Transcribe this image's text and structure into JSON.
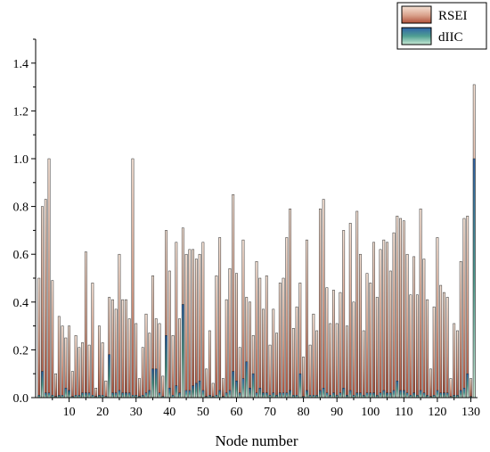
{
  "chart_data": {
    "type": "bar",
    "xlabel": "Node number",
    "ylabel": "",
    "ylim": [
      0,
      1.5
    ],
    "xlim": [
      0,
      132
    ],
    "yticks": [
      "0.0",
      "0.2",
      "0.4",
      "0.6",
      "0.8",
      "1.0",
      "1.2",
      "1.4"
    ],
    "xticks": [
      "10",
      "20",
      "30",
      "40",
      "50",
      "60",
      "70",
      "80",
      "90",
      "100",
      "110",
      "120",
      "130"
    ],
    "legend_position": "top-right",
    "grid": false,
    "x": [
      1,
      2,
      3,
      4,
      5,
      6,
      7,
      8,
      9,
      10,
      11,
      12,
      13,
      14,
      15,
      16,
      17,
      18,
      19,
      20,
      21,
      22,
      23,
      24,
      25,
      26,
      27,
      28,
      29,
      30,
      31,
      32,
      33,
      34,
      35,
      36,
      37,
      38,
      39,
      40,
      41,
      42,
      43,
      44,
      45,
      46,
      47,
      48,
      49,
      50,
      51,
      52,
      53,
      54,
      55,
      56,
      57,
      58,
      59,
      60,
      61,
      62,
      63,
      64,
      65,
      66,
      67,
      68,
      69,
      70,
      71,
      72,
      73,
      74,
      75,
      76,
      77,
      78,
      79,
      80,
      81,
      82,
      83,
      84,
      85,
      86,
      87,
      88,
      89,
      90,
      91,
      92,
      93,
      94,
      95,
      96,
      97,
      98,
      99,
      100,
      101,
      102,
      103,
      104,
      105,
      106,
      107,
      108,
      109,
      110,
      111,
      112,
      113,
      114,
      115,
      116,
      117,
      118,
      119,
      120,
      121,
      122,
      123,
      124,
      125,
      126,
      127,
      128,
      129,
      130,
      131
    ],
    "series": [
      {
        "name": "RSEI",
        "color": "#c8806a",
        "values": [
          0.5,
          0.8,
          0.83,
          1.0,
          0.49,
          0.1,
          0.34,
          0.3,
          0.25,
          0.3,
          0.11,
          0.26,
          0.21,
          0.23,
          0.61,
          0.22,
          0.48,
          0.04,
          0.3,
          0.23,
          0.07,
          0.42,
          0.41,
          0.37,
          0.6,
          0.41,
          0.41,
          0.33,
          1.0,
          0.31,
          0.08,
          0.21,
          0.35,
          0.27,
          0.51,
          0.33,
          0.31,
          0.09,
          0.7,
          0.53,
          0.26,
          0.65,
          0.33,
          0.71,
          0.6,
          0.62,
          0.62,
          0.58,
          0.6,
          0.65,
          0.12,
          0.28,
          0.06,
          0.51,
          0.67,
          0.08,
          0.41,
          0.54,
          0.85,
          0.52,
          0.21,
          0.66,
          0.42,
          0.4,
          0.26,
          0.57,
          0.5,
          0.37,
          0.51,
          0.22,
          0.37,
          0.27,
          0.48,
          0.5,
          0.67,
          0.79,
          0.29,
          0.38,
          0.48,
          0.17,
          0.66,
          0.22,
          0.35,
          0.28,
          0.79,
          0.83,
          0.46,
          0.31,
          0.45,
          0.31,
          0.44,
          0.7,
          0.3,
          0.73,
          0.4,
          0.78,
          0.6,
          0.28,
          0.52,
          0.48,
          0.65,
          0.42,
          0.62,
          0.66,
          0.65,
          0.53,
          0.69,
          0.76,
          0.75,
          0.74,
          0.6,
          0.43,
          0.59,
          0.43,
          0.79,
          0.58,
          0.41,
          0.12,
          0.38,
          0.67,
          0.47,
          0.44,
          0.42,
          0.08,
          0.31,
          0.28,
          0.57,
          0.75,
          0.76,
          0.08,
          1.31
        ]
      },
      {
        "name": "dIIC",
        "color": "#3f8e84",
        "values": [
          0.01,
          0.11,
          0.02,
          0.02,
          0.01,
          0.005,
          0.01,
          0.01,
          0.04,
          0.03,
          0.005,
          0.01,
          0.01,
          0.02,
          0.02,
          0.02,
          0.01,
          0.005,
          0.01,
          0.01,
          0.005,
          0.18,
          0.02,
          0.02,
          0.03,
          0.02,
          0.02,
          0.02,
          0.01,
          0.01,
          0.005,
          0.01,
          0.02,
          0.03,
          0.12,
          0.12,
          0.02,
          0.005,
          0.26,
          0.04,
          0.01,
          0.05,
          0.02,
          0.39,
          0.03,
          0.03,
          0.05,
          0.06,
          0.07,
          0.03,
          0.005,
          0.01,
          0.005,
          0.01,
          0.03,
          0.005,
          0.02,
          0.03,
          0.11,
          0.07,
          0.02,
          0.08,
          0.15,
          0.04,
          0.1,
          0.02,
          0.04,
          0.02,
          0.02,
          0.01,
          0.02,
          0.01,
          0.02,
          0.02,
          0.02,
          0.03,
          0.01,
          0.01,
          0.1,
          0.005,
          0.03,
          0.01,
          0.01,
          0.01,
          0.03,
          0.04,
          0.02,
          0.01,
          0.02,
          0.01,
          0.02,
          0.04,
          0.01,
          0.03,
          0.01,
          0.02,
          0.02,
          0.01,
          0.02,
          0.02,
          0.02,
          0.01,
          0.02,
          0.03,
          0.02,
          0.02,
          0.03,
          0.07,
          0.03,
          0.03,
          0.02,
          0.01,
          0.02,
          0.01,
          0.03,
          0.02,
          0.01,
          0.005,
          0.01,
          0.03,
          0.02,
          0.02,
          0.02,
          0.005,
          0.01,
          0.01,
          0.03,
          0.04,
          0.1,
          0.005,
          1.0
        ]
      }
    ]
  }
}
